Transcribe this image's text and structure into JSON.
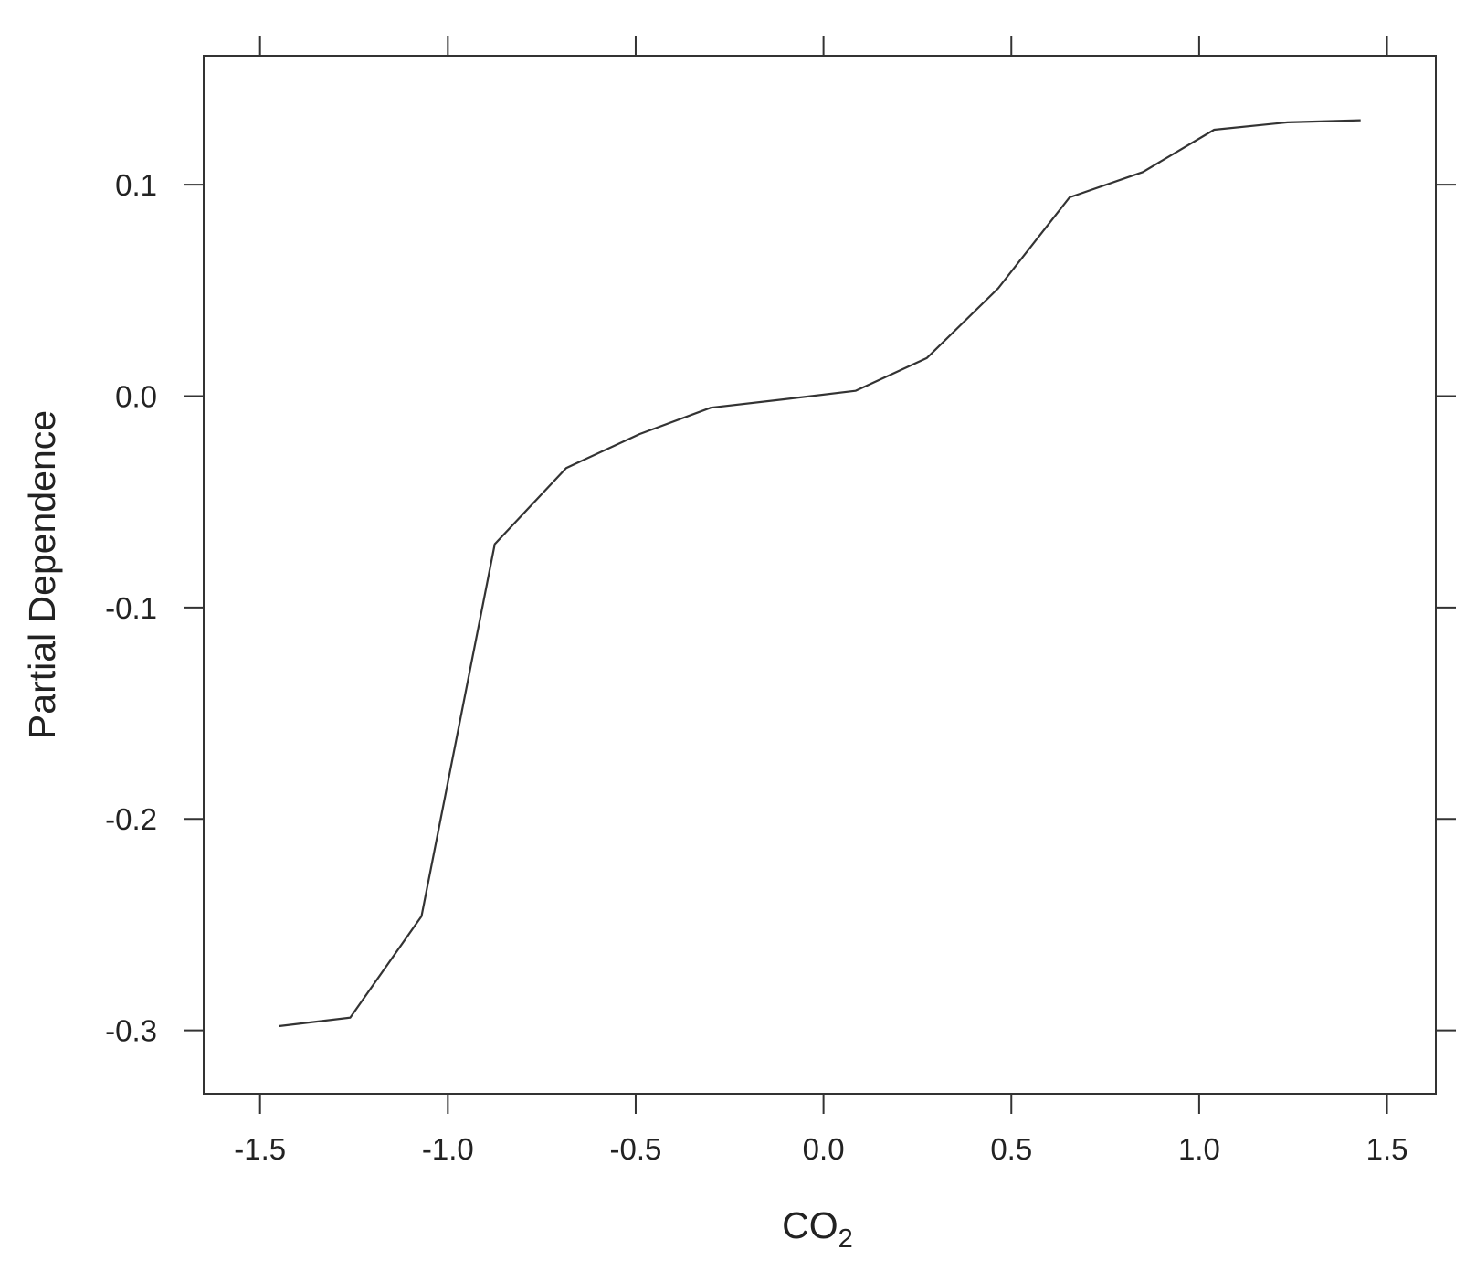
{
  "chart_data": {
    "type": "line",
    "xlabel": "CO",
    "xlabel_subscript": "2",
    "ylabel": "Partial Dependence",
    "xlim": [
      -1.65,
      1.63
    ],
    "ylim": [
      -0.33,
      0.161
    ],
    "x_ticks": [
      -1.5,
      -1.0,
      -0.5,
      0.0,
      0.5,
      1.0,
      1.5
    ],
    "x_tick_labels": [
      "-1.5",
      "-1.0",
      "-0.5",
      "0.0",
      "0.5",
      "1.0",
      "1.5"
    ],
    "y_ticks": [
      -0.3,
      -0.2,
      -0.1,
      0.0,
      0.1
    ],
    "y_tick_labels": [
      "-0.3",
      "-0.2",
      "-0.1",
      "0.0",
      "0.1"
    ],
    "ticks_mirrored": true,
    "grid": false,
    "legend": "none",
    "line_color": "#333333",
    "series": [
      {
        "x": [
          -1.45,
          -1.26,
          -1.07,
          -0.875,
          -0.685,
          -0.49,
          -0.3,
          -0.105,
          0.085,
          0.275,
          0.465,
          0.655,
          0.85,
          1.04,
          1.235,
          1.43
        ],
        "y": [
          -0.298,
          -0.294,
          -0.246,
          -0.07,
          -0.034,
          -0.018,
          -0.0055,
          -0.0015,
          0.0025,
          0.018,
          0.051,
          0.094,
          0.106,
          0.126,
          0.1295,
          0.1305
        ]
      }
    ]
  }
}
